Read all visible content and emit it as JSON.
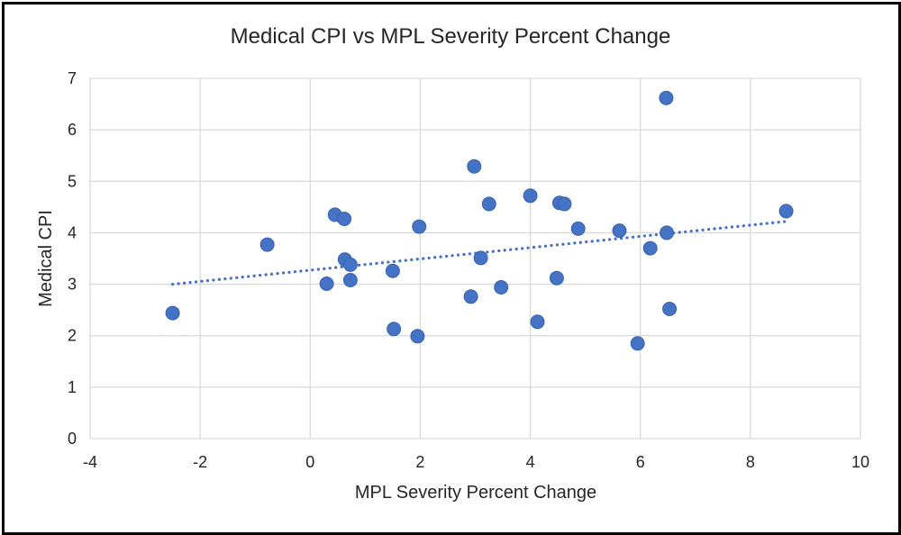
{
  "chart_data": {
    "type": "scatter",
    "title": "Medical CPI vs MPL Severity Percent Change",
    "xlabel": "MPL Severity Percent Change",
    "ylabel": "Medical CPI",
    "xlim": [
      -4,
      10
    ],
    "ylim": [
      0,
      7
    ],
    "xticks": [
      "-4",
      "-2",
      "0",
      "2",
      "4",
      "6",
      "8",
      "10"
    ],
    "yticks": [
      "0",
      "1",
      "2",
      "3",
      "4",
      "5",
      "6",
      "7"
    ],
    "grid": true,
    "marker_color": "#4472c4",
    "trendline": {
      "style": "dotted",
      "x_start": -2.5,
      "x_end": 8.65,
      "y_start": 3.0,
      "y_end": 4.22,
      "color": "#4472c4"
    },
    "points": [
      {
        "x": -2.5,
        "y": 2.44
      },
      {
        "x": -0.78,
        "y": 3.77
      },
      {
        "x": 0.3,
        "y": 3.01
      },
      {
        "x": 0.45,
        "y": 4.35
      },
      {
        "x": 0.62,
        "y": 4.27
      },
      {
        "x": 0.63,
        "y": 3.48
      },
      {
        "x": 0.73,
        "y": 3.38
      },
      {
        "x": 0.73,
        "y": 3.08
      },
      {
        "x": 1.5,
        "y": 3.26
      },
      {
        "x": 1.52,
        "y": 2.13
      },
      {
        "x": 1.95,
        "y": 1.99
      },
      {
        "x": 1.98,
        "y": 4.12
      },
      {
        "x": 2.92,
        "y": 2.76
      },
      {
        "x": 2.98,
        "y": 5.29
      },
      {
        "x": 3.1,
        "y": 3.51
      },
      {
        "x": 3.25,
        "y": 4.56
      },
      {
        "x": 3.47,
        "y": 2.94
      },
      {
        "x": 4.0,
        "y": 4.72
      },
      {
        "x": 4.13,
        "y": 2.27
      },
      {
        "x": 4.48,
        "y": 3.12
      },
      {
        "x": 4.53,
        "y": 4.58
      },
      {
        "x": 4.62,
        "y": 4.56
      },
      {
        "x": 4.87,
        "y": 4.08
      },
      {
        "x": 5.62,
        "y": 4.04
      },
      {
        "x": 5.95,
        "y": 1.85
      },
      {
        "x": 6.18,
        "y": 3.7
      },
      {
        "x": 6.47,
        "y": 6.62
      },
      {
        "x": 6.48,
        "y": 4.0
      },
      {
        "x": 6.53,
        "y": 2.52
      },
      {
        "x": 8.65,
        "y": 4.42
      }
    ]
  }
}
